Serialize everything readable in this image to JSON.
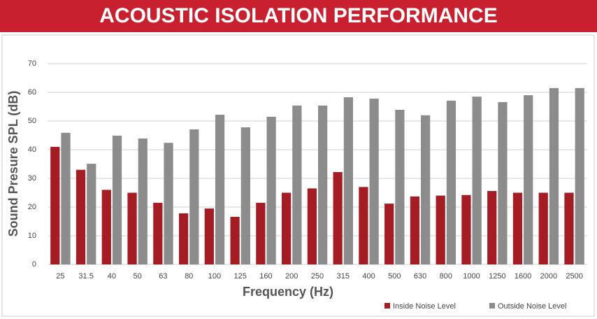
{
  "chart_data": {
    "type": "bar",
    "title": "ACOUSTIC ISOLATION PERFORMANCE",
    "x_label": "Frequency (Hz)",
    "y_label": "Sound Presure SPL (dB)",
    "categories": [
      "25",
      "31.5",
      "40",
      "50",
      "63",
      "80",
      "100",
      "125",
      "160",
      "200",
      "250",
      "315",
      "400",
      "500",
      "630",
      "800",
      "1000",
      "1250",
      "1600",
      "2000",
      "2500"
    ],
    "series": [
      {
        "name": "Inside Noise Level",
        "color": "#a51d24",
        "values": [
          41,
          33,
          26,
          25,
          21.5,
          17.8,
          19.5,
          16.6,
          21.5,
          25,
          26.5,
          32.2,
          27,
          21.2,
          23.7,
          24,
          24.2,
          25.6,
          25,
          25,
          25
        ]
      },
      {
        "name": "Outside Noise Level",
        "color": "#8c8c8c",
        "values": [
          45.9,
          35.1,
          44.9,
          43.9,
          42.4,
          47.1,
          52.2,
          47.8,
          51.5,
          55.4,
          55.4,
          58.3,
          57.8,
          53.9,
          52,
          57.1,
          58.5,
          56.6,
          59,
          61.5,
          61.5
        ]
      }
    ],
    "ylim": [
      0,
      70
    ],
    "yticks": [
      0,
      10,
      20,
      30,
      40,
      50,
      60,
      70
    ],
    "grid": true,
    "legend": "bottom-right"
  }
}
